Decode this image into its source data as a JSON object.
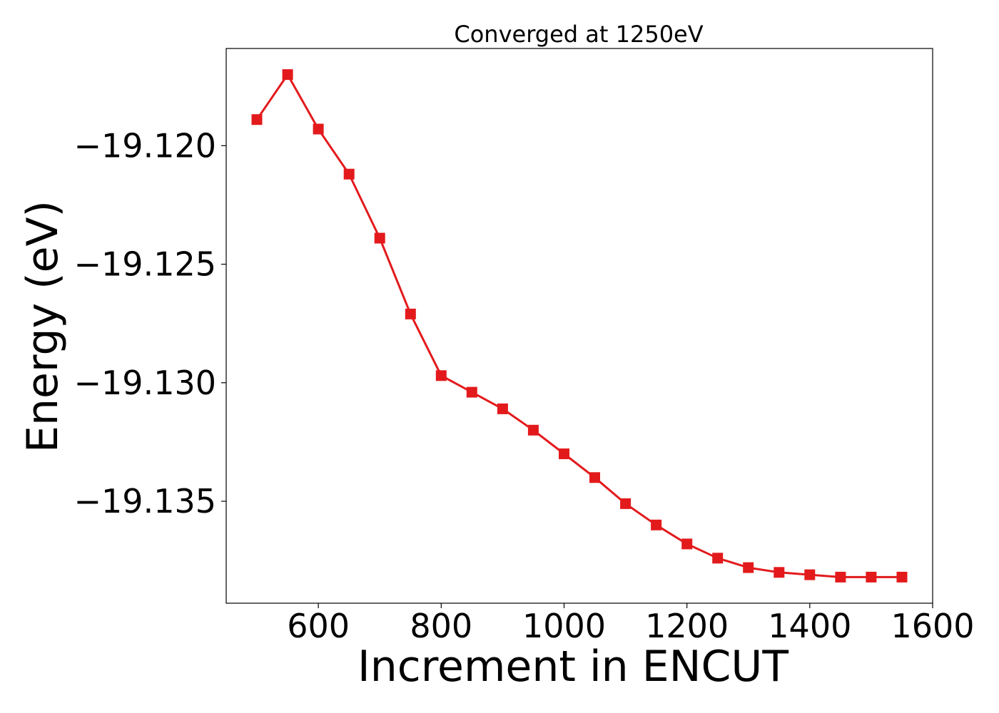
{
  "chart_data": {
    "type": "line",
    "title": "Converged at 1250eV",
    "xlabel": "Increment in ENCUT",
    "ylabel": "Energy (eV)",
    "xlim": [
      450,
      1600
    ],
    "ylim": [
      -19.1393,
      -19.1159
    ],
    "xticks": [
      600,
      800,
      1000,
      1200,
      1400,
      1600
    ],
    "xtick_labels": [
      "600",
      "800",
      "1000",
      "1200",
      "1400",
      "1600"
    ],
    "yticks": [
      -19.12,
      -19.125,
      -19.13,
      -19.135
    ],
    "ytick_labels": [
      "−19.120",
      "−19.125",
      "−19.130",
      "−19.135"
    ],
    "grid": false,
    "series": [
      {
        "color": "#e31a1c",
        "marker": "square",
        "x": [
          500,
          550,
          600,
          650,
          700,
          750,
          800,
          850,
          900,
          950,
          1000,
          1050,
          1100,
          1150,
          1200,
          1250,
          1300,
          1350,
          1400,
          1450,
          1500,
          1550
        ],
        "y": [
          -19.1189,
          -19.117,
          -19.1193,
          -19.1212,
          -19.1239,
          -19.1271,
          -19.1297,
          -19.1304,
          -19.1311,
          -19.132,
          -19.133,
          -19.134,
          -19.1351,
          -19.136,
          -19.1368,
          -19.1374,
          -19.1378,
          -19.138,
          -19.1381,
          -19.1382,
          -19.1382,
          -19.1382
        ]
      }
    ]
  }
}
